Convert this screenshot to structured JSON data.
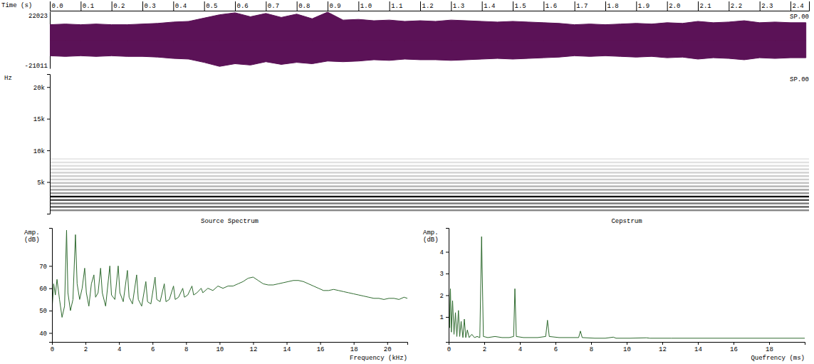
{
  "chart_data": [
    {
      "type": "area",
      "x_label": "Time (s)",
      "annotation": "SP.00",
      "xlim": [
        0,
        2.46
      ],
      "xticks": [
        {
          "value": 0,
          "label": "0.0"
        },
        0.1,
        0.2,
        0.3,
        0.4,
        0.5,
        0.6,
        0.7,
        0.8,
        0.9,
        {
          "value": 1,
          "label": "1.0"
        },
        1.1,
        1.2,
        1.3,
        1.4,
        1.5,
        1.6,
        1.7,
        1.8,
        1.9,
        {
          "value": 2,
          "label": "2.0"
        },
        2.1,
        2.2,
        2.3,
        2.4
      ],
      "ylim": [
        -21011,
        22023
      ],
      "yticks": [
        -21011,
        22023
      ],
      "color": "#5b1257",
      "x": [
        0,
        0.05,
        0.1,
        0.15,
        0.2,
        0.25,
        0.3,
        0.35,
        0.4,
        0.45,
        0.5,
        0.55,
        0.6,
        0.65,
        0.7,
        0.75,
        0.8,
        0.85,
        0.9,
        0.95,
        1,
        1.05,
        1.1,
        1.15,
        1.2,
        1.25,
        1.3,
        1.35,
        1.4,
        1.45,
        1.5,
        1.55,
        1.6,
        1.65,
        1.7,
        1.75,
        1.8,
        1.85,
        1.9,
        1.95,
        2,
        2.05,
        2.1,
        2.15,
        2.2,
        2.25,
        2.3,
        2.35,
        2.4,
        2.45
      ],
      "upper": [
        12000,
        12500,
        12000,
        12500,
        12000,
        12000,
        12500,
        13000,
        14000,
        14500,
        17000,
        19500,
        21000,
        18000,
        20500,
        17500,
        20000,
        16500,
        21500,
        15500,
        16000,
        15000,
        15500,
        14500,
        15000,
        14500,
        15500,
        15000,
        14500,
        14000,
        14500,
        14000,
        13500,
        13000,
        12000,
        12500,
        12000,
        12500,
        13000,
        12500,
        13500,
        13000,
        14500,
        13500,
        14000,
        15000,
        13500,
        14000,
        13500,
        13500
      ],
      "lower": [
        -11500,
        -12000,
        -11500,
        -12000,
        -11500,
        -12000,
        -12000,
        -12500,
        -13500,
        -14000,
        -16500,
        -19500,
        -17500,
        -18500,
        -16000,
        -18000,
        -16500,
        -17500,
        -15500,
        -16000,
        -15500,
        -14500,
        -15000,
        -14000,
        -14500,
        -14500,
        -15000,
        -14500,
        -14000,
        -13500,
        -14000,
        -13500,
        -13000,
        -12500,
        -11500,
        -12000,
        -11500,
        -12000,
        -12500,
        -12000,
        -13000,
        -12500,
        -14000,
        -13000,
        -13500,
        -14500,
        -13000,
        -13500,
        -13000,
        -13000
      ]
    },
    {
      "type": "spectrogram",
      "y_label": "Hz",
      "annotation": "SP.00",
      "xlim": [
        0,
        2.46
      ],
      "ylim": [
        0,
        22050
      ],
      "yticks": [
        {
          "value": 5000,
          "label": "5k"
        },
        {
          "value": 10000,
          "label": "10k"
        },
        {
          "value": 15000,
          "label": "15k"
        },
        {
          "value": 20000,
          "label": "20k"
        }
      ],
      "harmonics": {
        "frequency": [
          540,
          1080,
          1620,
          2160,
          2700,
          3240,
          3780,
          4320,
          4860,
          5400,
          5940,
          6480,
          7020,
          7560,
          8100,
          8640
        ],
        "level": [
          0.55,
          0.7,
          0.6,
          0.75,
          0.95,
          0.5,
          0.45,
          0.4,
          0.35,
          0.3,
          0.3,
          0.28,
          0.25,
          0.22,
          0.2,
          0.15
        ]
      }
    },
    {
      "type": "line",
      "title": "Source Spectrum",
      "x_label": "Frequency (kHz)",
      "y_label": "Amp. (dB)",
      "xlim": [
        0,
        21.2
      ],
      "xticks": [
        0,
        2,
        4,
        6,
        8,
        10,
        12,
        14,
        16,
        18,
        20
      ],
      "ylim": [
        36,
        87
      ],
      "yticks": [
        40,
        50,
        60,
        70
      ],
      "color": "#2f6b2f",
      "x": [
        0,
        0.1,
        0.2,
        0.3,
        0.45,
        0.6,
        0.75,
        0.87,
        0.95,
        1.1,
        1.25,
        1.4,
        1.5,
        1.65,
        1.8,
        1.95,
        2.05,
        2.2,
        2.35,
        2.5,
        2.6,
        2.75,
        2.9,
        3,
        3.2,
        3.45,
        3.55,
        3.75,
        3.95,
        4.05,
        4.25,
        4.5,
        4.6,
        4.8,
        5.05,
        5.15,
        5.35,
        5.6,
        5.7,
        5.9,
        6.15,
        6.25,
        6.45,
        6.7,
        6.8,
        7,
        7.25,
        7.35,
        7.55,
        7.8,
        7.9,
        8.1,
        8.35,
        8.45,
        8.65,
        8.9,
        9,
        9.3,
        9.6,
        9.9,
        10.2,
        10.5,
        10.8,
        11.1,
        11.4,
        11.7,
        12,
        12.3,
        12.6,
        12.9,
        13.2,
        13.5,
        13.8,
        14.1,
        14.4,
        14.7,
        15,
        15.3,
        15.6,
        15.9,
        16.2,
        16.5,
        16.8,
        17.1,
        17.4,
        17.7,
        18,
        18.3,
        18.6,
        18.9,
        19.2,
        19.5,
        19.8,
        20.1,
        20.4,
        20.7,
        21,
        21.2
      ],
      "values": [
        50,
        62,
        57,
        64,
        55,
        47,
        52,
        86,
        58,
        50,
        55,
        84,
        62,
        55,
        60,
        69,
        58,
        52,
        62,
        66,
        56,
        58,
        69,
        58,
        52,
        70,
        57,
        55,
        70,
        58,
        54,
        68,
        56,
        53,
        66,
        55,
        52,
        63,
        54,
        53,
        65,
        55,
        54,
        62,
        54,
        55,
        61,
        55,
        56,
        60,
        56,
        57,
        61,
        57,
        58,
        60,
        58,
        60,
        59,
        61,
        60,
        61,
        61,
        62,
        63,
        64.5,
        65,
        63.5,
        62,
        61.5,
        61.5,
        62,
        62.5,
        63,
        63.5,
        63.5,
        63,
        62,
        61,
        60,
        59,
        59,
        59.5,
        59,
        58.5,
        58,
        57.5,
        57,
        56.5,
        56,
        55.5,
        55.5,
        55,
        55.5,
        55.5,
        55,
        56,
        55.5
      ]
    },
    {
      "type": "line",
      "title": "Cepstrum",
      "x_label": "Quefrency (ms)",
      "y_label": "Amp. (dB)",
      "xlim": [
        0,
        20
      ],
      "xticks": [
        0,
        2,
        4,
        6,
        8,
        10,
        12,
        14,
        16,
        18
      ],
      "ylim": [
        -0.15,
        5.1
      ],
      "yticks": [
        1,
        2,
        3,
        4
      ],
      "color": "#2f6b2f",
      "x": [
        0,
        0.05,
        0.1,
        0.15,
        0.22,
        0.3,
        0.38,
        0.46,
        0.55,
        0.62,
        0.7,
        0.8,
        0.88,
        0.96,
        1.05,
        1.15,
        1.3,
        1.45,
        1.6,
        1.75,
        1.85,
        1.95,
        2.2,
        2.6,
        3,
        3.4,
        3.65,
        3.72,
        3.8,
        4.2,
        4.6,
        5,
        5.45,
        5.55,
        5.65,
        6.2,
        6.8,
        7.3,
        7.4,
        7.5,
        8.2,
        8.8,
        9.25,
        9.4,
        10.2,
        11.1,
        11.3,
        12.5,
        14,
        16,
        18,
        20
      ],
      "values": [
        3.5,
        0.5,
        2.3,
        0.3,
        1.75,
        0.2,
        1.2,
        0.1,
        1.3,
        0.1,
        0.8,
        0.05,
        0.9,
        0.05,
        0.4,
        0.05,
        0.2,
        0.05,
        0.1,
        0.05,
        4.7,
        0.1,
        0.05,
        0.1,
        0.05,
        0.05,
        0.1,
        2.3,
        0.1,
        0.05,
        0.05,
        0.05,
        0.1,
        0.85,
        0.1,
        0.05,
        0.05,
        0.05,
        0.35,
        0.05,
        0.02,
        0.02,
        0.07,
        0.02,
        0.02,
        0.04,
        0.02,
        0.02,
        0.02,
        0.02,
        0.02,
        0.02
      ]
    }
  ]
}
